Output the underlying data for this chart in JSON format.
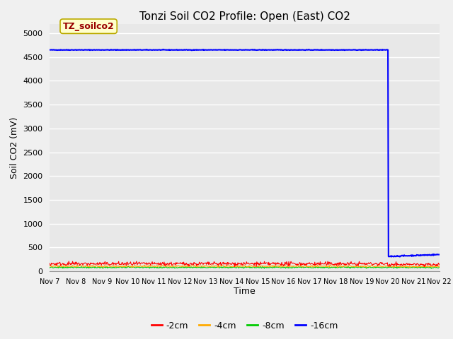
{
  "title": "Tonzi Soil CO2 Profile: Open (East) CO2",
  "ylabel": "Soil CO2 (mV)",
  "xlabel": "Time",
  "ylim": [
    0,
    5200
  ],
  "yticks": [
    0,
    500,
    1000,
    1500,
    2000,
    2500,
    3000,
    3500,
    4000,
    4500,
    5000
  ],
  "bg_color": "#e8e8e8",
  "grid_color": "#ffffff",
  "legend_labels": [
    "-2cm",
    "-4cm",
    "-8cm",
    "-16cm"
  ],
  "legend_colors": [
    "#ff0000",
    "#ffaa00",
    "#00cc00",
    "#0000ff"
  ],
  "watermark_text": "TZ_soilco2",
  "watermark_bg": "#ffffcc",
  "watermark_border": "#bbaa00",
  "watermark_text_color": "#990000",
  "blue_high": 4650,
  "blue_after_drop": 310,
  "blue_drop_day": 13.0,
  "red_mean": 155,
  "red_noise": 20,
  "orange_mean": 105,
  "orange_noise": 8,
  "green_mean": 80,
  "green_noise": 8,
  "xtick_labels": [
    "Nov 7",
    "Nov 8",
    "Nov 9",
    "Nov 10",
    "Nov 11",
    "Nov 12",
    "Nov 13",
    "Nov 14",
    "Nov 15",
    "Nov 16",
    "Nov 17",
    "Nov 18",
    "Nov 19",
    "Nov 20",
    "Nov 21",
    "Nov 22"
  ]
}
